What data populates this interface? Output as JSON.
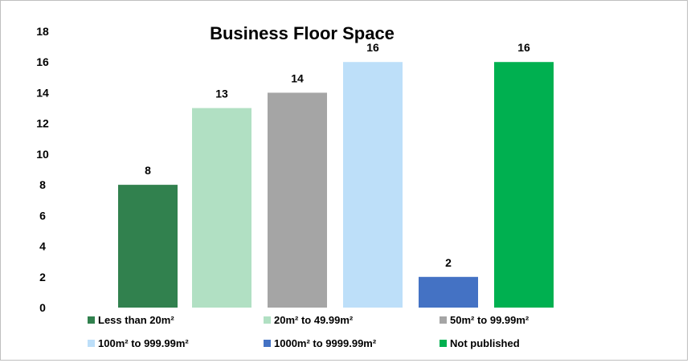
{
  "chart_data": {
    "type": "bar",
    "title": "Business Floor Space",
    "xlabel": "",
    "ylabel": "",
    "ylim": [
      0,
      18
    ],
    "yticks": [
      0,
      2,
      4,
      6,
      8,
      10,
      12,
      14,
      16,
      18
    ],
    "grid": false,
    "legend_position": "bottom",
    "categories": [
      "Less than 20m²",
      "20m² to 49.99m²",
      "50m² to 99.99m²",
      "100m² to 999.99m²",
      "1000m² to 9999.99m²",
      "Not published"
    ],
    "values": [
      8,
      13,
      14,
      16,
      2,
      16
    ],
    "colors": [
      "#31814e",
      "#b1e0c3",
      "#a5a5a5",
      "#bddff9",
      "#4472c4",
      "#00b050"
    ]
  }
}
